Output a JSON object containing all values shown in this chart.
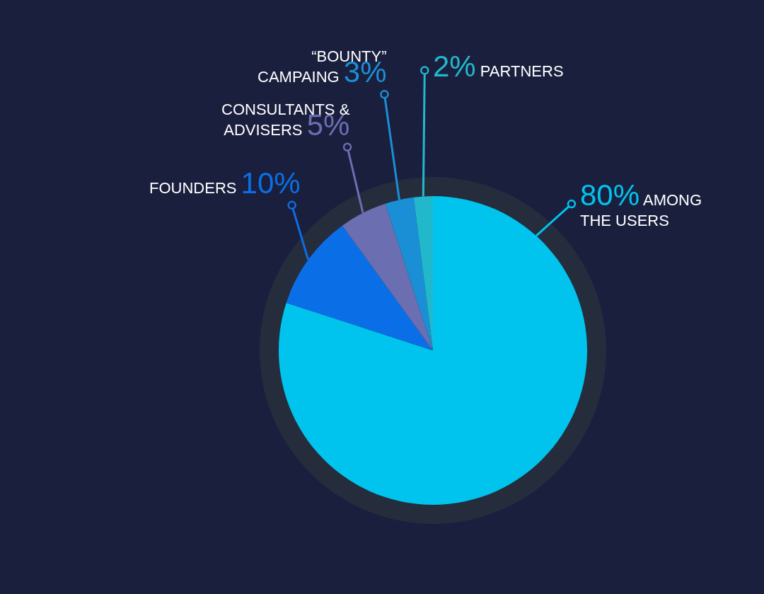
{
  "chart_data": {
    "type": "pie",
    "categories": [
      "AMONG\nTHE USERS",
      "FOUNDERS",
      "CONSULTANTS &\nADVISERS",
      "“BOUNTY”\nCAMPAING",
      "PARTNERS"
    ],
    "values": [
      80,
      10,
      5,
      3,
      2
    ],
    "value_labels": [
      "80%",
      "10%",
      "5%",
      "3%",
      "2%"
    ],
    "colors": [
      "#00c4ee",
      "#0a6fe6",
      "#6b6fb2",
      "#1b8fd6",
      "#22b8cc"
    ],
    "legend": false
  }
}
